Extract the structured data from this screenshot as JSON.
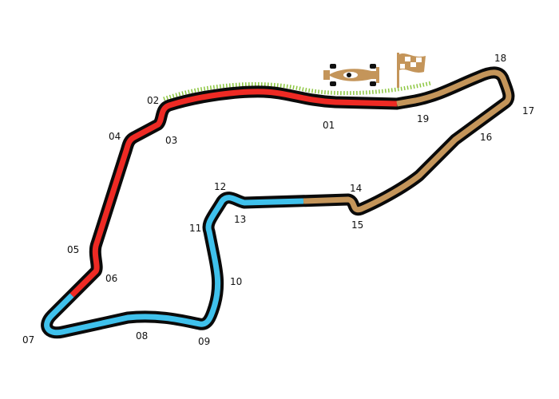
{
  "colors": {
    "outline": "#0a0a0a",
    "sector1": "#ee2a24",
    "sector2": "#3fc1ec",
    "sector3": "#c4955a",
    "kerb": "#8cc63f"
  },
  "icons": [
    "race-car-icon",
    "checkered-flag-icon"
  ],
  "corners": [
    {
      "label": "01"
    },
    {
      "label": "02"
    },
    {
      "label": "03"
    },
    {
      "label": "04"
    },
    {
      "label": "05"
    },
    {
      "label": "06"
    },
    {
      "label": "07"
    },
    {
      "label": "08"
    },
    {
      "label": "09"
    },
    {
      "label": "10"
    },
    {
      "label": "11"
    },
    {
      "label": "12"
    },
    {
      "label": "13"
    },
    {
      "label": "14"
    },
    {
      "label": "15"
    },
    {
      "label": "16"
    },
    {
      "label": "17"
    },
    {
      "label": "18"
    },
    {
      "label": "19"
    }
  ]
}
